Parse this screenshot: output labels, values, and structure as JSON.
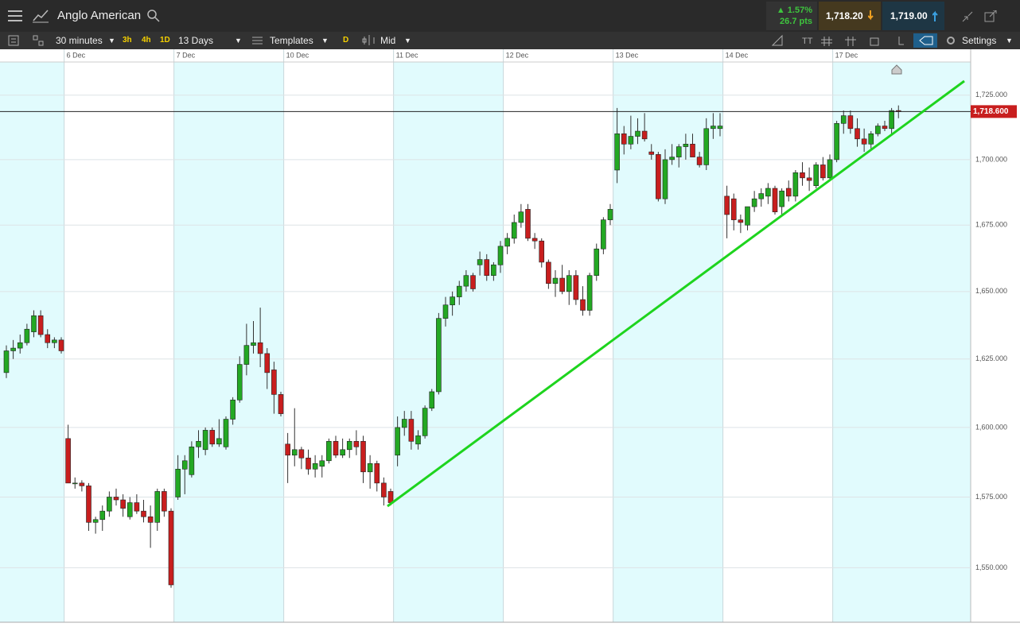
{
  "header": {
    "title": "Anglo American",
    "change_pct": "▲ 1.57%",
    "change_pts": "26.7 pts",
    "sell": "1,718.20",
    "buy": "1,719.00"
  },
  "toolbar": {
    "interval": "30 minutes",
    "quick": [
      "3h",
      "4h",
      "1D"
    ],
    "range": "13 Days",
    "templates": "Templates",
    "d": "D",
    "price_type": "Mid",
    "settings": "Settings"
  },
  "chart_data": {
    "type": "candlestick",
    "log_scale": true,
    "grid": true,
    "up_color": "#23a823",
    "down_color": "#c81e1e",
    "categories": [
      null,
      null,
      null,
      null,
      null,
      null,
      null,
      null,
      null,
      "6 Dec",
      null,
      null,
      null,
      null,
      null,
      null,
      null,
      null,
      null,
      null,
      null,
      null,
      null,
      null,
      null,
      "7 Dec",
      null,
      null,
      null,
      null,
      null,
      null,
      null,
      null,
      null,
      null,
      null,
      null,
      null,
      null,
      null,
      "10 Dec",
      null,
      null,
      null,
      null,
      null,
      null,
      null,
      null,
      null,
      null,
      null,
      null,
      null,
      null,
      null,
      "11 Dec",
      null,
      null,
      null,
      null,
      null,
      null,
      null,
      null,
      null,
      null,
      null,
      null,
      null,
      null,
      null,
      "12 Dec",
      null,
      null,
      null,
      null,
      null,
      null,
      null,
      null,
      null,
      null,
      null,
      null,
      null,
      null,
      null,
      "13 Dec",
      null,
      null,
      null,
      null,
      null,
      null,
      null,
      null,
      null,
      null,
      null,
      null,
      null,
      null,
      null,
      "14 Dec",
      null,
      null,
      null,
      null,
      null,
      null,
      null,
      null,
      null,
      null,
      null,
      null,
      null,
      null,
      null,
      "17 Dec",
      null,
      null,
      null,
      null,
      null,
      null,
      null,
      null,
      null
    ],
    "open": [
      1620,
      1628,
      1629,
      1631,
      1635,
      1641,
      1634,
      1631,
      1632,
      1596,
      1580,
      1580,
      1579,
      1566,
      1567,
      1570,
      1575,
      1574,
      1568,
      1573,
      1570,
      1568,
      1566,
      1577,
      1570,
      1575,
      1585,
      1583,
      1593,
      1592,
      1599,
      1594,
      1593,
      1603,
      1610,
      1623,
      1630,
      1631,
      1627,
      1621,
      1612,
      1594,
      1590,
      1592,
      1589,
      1585,
      1586,
      1588,
      1595,
      1590,
      1592,
      1595,
      1595,
      1584,
      1587,
      1580,
      1577,
      1590,
      1600,
      1603,
      1594,
      1597,
      1607,
      1613,
      1640,
      1645,
      1648,
      1652,
      1656,
      1660,
      1662,
      1656,
      1660,
      1667,
      1670,
      1676,
      1681,
      1670,
      1669,
      1661,
      1653,
      1655,
      1650,
      1656,
      1647,
      1643,
      1656,
      1666,
      1677,
      1696,
      1710,
      1706,
      1709,
      1711,
      1703,
      1702,
      1685,
      1700,
      1701,
      1705,
      1706,
      1701,
      1698,
      1712,
      1712,
      1686,
      1685,
      1677,
      1675,
      1682,
      1685,
      1686,
      1689,
      1682,
      1689,
      1686,
      1695,
      1693,
      1690,
      1698,
      1693,
      1700,
      1714,
      1717,
      1712,
      1708,
      1706,
      1710,
      1713,
      1712,
      1719
    ],
    "high": [
      1630,
      1632,
      1634,
      1638,
      1643,
      1643,
      1636,
      1633,
      1633,
      1601,
      1582,
      1581,
      1580,
      1568,
      1572,
      1577,
      1578,
      1576,
      1575,
      1576,
      1574,
      1572,
      1578,
      1578,
      1571,
      1590,
      1590,
      1595,
      1599,
      1600,
      1600,
      1603,
      1604,
      1611,
      1626,
      1638,
      1639,
      1644,
      1629,
      1624,
      1613,
      1598,
      1607,
      1593,
      1592,
      1590,
      1590,
      1596,
      1597,
      1596,
      1596,
      1599,
      1597,
      1590,
      1588,
      1582,
      1578,
      1604,
      1606,
      1606,
      1599,
      1608,
      1614,
      1642,
      1648,
      1650,
      1654,
      1658,
      1657,
      1665,
      1664,
      1661,
      1669,
      1672,
      1679,
      1683,
      1683,
      1672,
      1670,
      1662,
      1658,
      1660,
      1658,
      1658,
      1652,
      1657,
      1668,
      1678,
      1683,
      1720,
      1713,
      1717,
      1716,
      1718,
      1706,
      1703,
      1704,
      1706,
      1706,
      1710,
      1710,
      1703,
      1716,
      1718,
      1718,
      1690,
      1687,
      1679,
      1682,
      1688,
      1689,
      1691,
      1690,
      1689,
      1692,
      1696,
      1699,
      1697,
      1699,
      1701,
      1702,
      1715,
      1719,
      1719,
      1716,
      1712,
      1711,
      1714,
      1715,
      1720,
      1721
    ],
    "low": [
      1618,
      1625,
      1627,
      1630,
      1633,
      1633,
      1629,
      1629,
      1627,
      1580,
      1578,
      1577,
      1563,
      1562,
      1563,
      1568,
      1572,
      1568,
      1567,
      1569,
      1566,
      1557,
      1563,
      1568,
      1543,
      1574,
      1576,
      1582,
      1589,
      1590,
      1593,
      1593,
      1592,
      1601,
      1609,
      1619,
      1627,
      1622,
      1614,
      1605,
      1604,
      1580,
      1586,
      1585,
      1583,
      1582,
      1582,
      1587,
      1589,
      1589,
      1589,
      1590,
      1580,
      1578,
      1577,
      1572,
      1572,
      1586,
      1597,
      1592,
      1592,
      1596,
      1606,
      1612,
      1637,
      1641,
      1645,
      1650,
      1650,
      1656,
      1654,
      1654,
      1657,
      1664,
      1668,
      1674,
      1669,
      1666,
      1659,
      1651,
      1648,
      1649,
      1645,
      1645,
      1641,
      1641,
      1654,
      1664,
      1675,
      1691,
      1702,
      1704,
      1706,
      1707,
      1700,
      1684,
      1683,
      1698,
      1697,
      1700,
      1702,
      1697,
      1696,
      1708,
      1709,
      1670,
      1673,
      1672,
      1673,
      1680,
      1682,
      1683,
      1679,
      1679,
      1684,
      1684,
      1690,
      1688,
      1689,
      1692,
      1692,
      1699,
      1710,
      1710,
      1705,
      1703,
      1704,
      1709,
      1711,
      1710,
      1716
    ],
    "close": [
      1628,
      1629,
      1631,
      1636,
      1641,
      1634,
      1631,
      1632,
      1628,
      1580,
      1580,
      1579,
      1566,
      1567,
      1570,
      1575,
      1574,
      1571,
      1573,
      1570,
      1568,
      1566,
      1577,
      1570,
      1544,
      1585,
      1588,
      1593,
      1595,
      1599,
      1594,
      1596,
      1603,
      1610,
      1623,
      1630,
      1631,
      1627,
      1620,
      1612,
      1605,
      1590,
      1592,
      1589,
      1585,
      1587,
      1588,
      1595,
      1590,
      1592,
      1595,
      1593,
      1584,
      1587,
      1580,
      1575,
      1573,
      1600,
      1603,
      1595,
      1597,
      1607,
      1613,
      1640,
      1645,
      1648,
      1652,
      1656,
      1651,
      1662,
      1656,
      1660,
      1667,
      1670,
      1676,
      1680,
      1670,
      1669,
      1661,
      1653,
      1655,
      1650,
      1656,
      1647,
      1643,
      1656,
      1666,
      1677,
      1681,
      1710,
      1706,
      1709,
      1711,
      1708,
      1702,
      1685,
      1700,
      1701,
      1705,
      1706,
      1701,
      1698,
      1712,
      1713,
      1713,
      1679,
      1677,
      1676,
      1682,
      1685,
      1687,
      1689,
      1680,
      1688,
      1686,
      1695,
      1693,
      1692,
      1698,
      1693,
      1700,
      1714,
      1717,
      1712,
      1708,
      1706,
      1710,
      1713,
      1712,
      1719,
      1718.6
    ],
    "ylim": [
      1531,
      1738
    ],
    "yticks": [
      {
        "value": 1550,
        "label": "1,550.000"
      },
      {
        "value": 1575,
        "label": "1,575.000"
      },
      {
        "value": 1600,
        "label": "1,600.000"
      },
      {
        "value": 1625,
        "label": "1,625.000"
      },
      {
        "value": 1650,
        "label": "1,650.000"
      },
      {
        "value": 1675,
        "label": "1,675.000"
      },
      {
        "value": 1700,
        "label": "1,700.000"
      },
      {
        "value": 1725,
        "label": "1,725.000"
      }
    ],
    "last_price": {
      "value": 1718.6,
      "label": "1,718.600"
    }
  }
}
